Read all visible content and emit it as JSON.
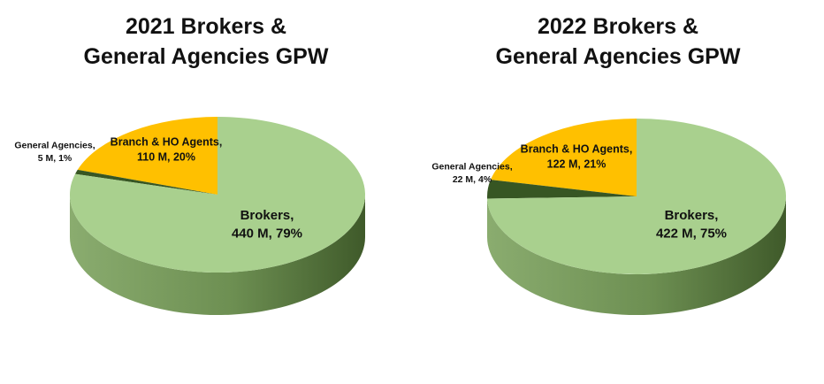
{
  "chart_data": [
    {
      "type": "pie",
      "title_line1": "2021 Brokers &",
      "title_line2": "General Agencies GPW",
      "slices": [
        {
          "name": "Brokers",
          "value_text": "440 M, 79%",
          "value": 440,
          "percent": 79,
          "color": "#a9d08e"
        },
        {
          "name": "General Agencies",
          "value_text": "5 M, 1%",
          "value": 5,
          "percent": 1,
          "color": "#375623"
        },
        {
          "name": "Branch & HO Agents",
          "value_text": "110 M, 20%",
          "value": 110,
          "percent": 20,
          "color": "#ffc000"
        }
      ]
    },
    {
      "type": "pie",
      "title_line1": "2022 Brokers &",
      "title_line2": "General Agencies GPW",
      "slices": [
        {
          "name": "Brokers",
          "value_text": "422 M, 75%",
          "value": 422,
          "percent": 75,
          "color": "#a9d08e"
        },
        {
          "name": "General Agencies",
          "value_text": "22 M, 4%",
          "value": 22,
          "percent": 4,
          "color": "#375623"
        },
        {
          "name": "Branch & HO Agents",
          "value_text": "122 M, 21%",
          "value": 122,
          "percent": 21,
          "color": "#ffc000"
        }
      ]
    }
  ],
  "colors": {
    "side_light": "#8aac6f",
    "side_dark": "#3f5a2a"
  }
}
